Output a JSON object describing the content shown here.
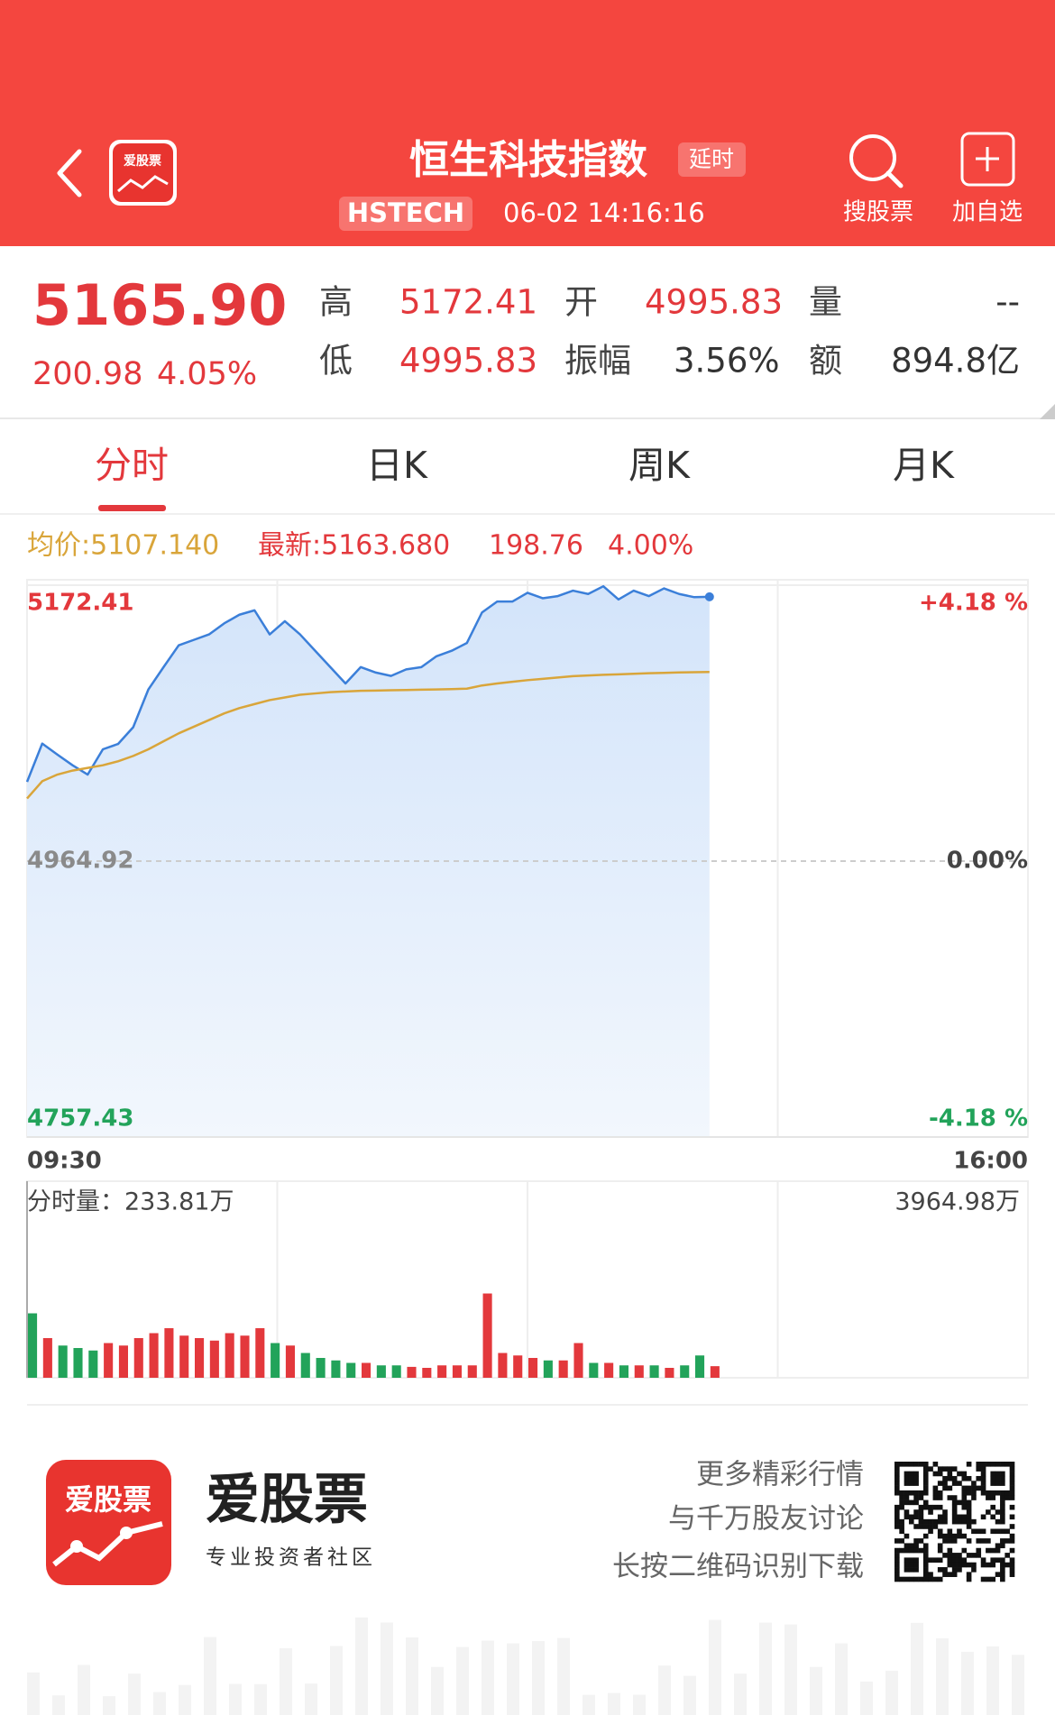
{
  "header": {
    "title": "恒生科技指数",
    "badge": "延时",
    "code": "HSTECH",
    "time": "06-02 14:16:16",
    "logo_text": "爱股票",
    "actions": [
      "搜股票",
      "加自选"
    ]
  },
  "quote": {
    "price": "5165.90",
    "change": "200.98",
    "change_pct": "4.05%",
    "stats": [
      {
        "label": "高",
        "value": "5172.41"
      },
      {
        "label": "开",
        "value": "4995.83"
      },
      {
        "label": "量",
        "value": "--"
      },
      {
        "label": "低",
        "value": "4995.83"
      },
      {
        "label": "振幅",
        "value": "3.56%"
      },
      {
        "label": "额",
        "value": "894.8亿"
      }
    ]
  },
  "tabs": [
    "分时",
    "日K",
    "周K",
    "月K"
  ],
  "info": [
    "均价:5107.140",
    "最新:5163.680",
    "198.76",
    "4.00%"
  ],
  "chart_data": [
    {
      "type": "line",
      "x_labels": [
        "09:30",
        "16:00"
      ],
      "ylim": [
        4757.43,
        5172.41
      ],
      "yticks": [
        5172.41,
        4964.92,
        4757.43
      ],
      "y2lim": [
        -4.18,
        4.18
      ],
      "y2ticks": [
        {
          "value": 4.18,
          "label": "+4.18 %"
        },
        {
          "value": 0,
          "label": "0.00%"
        },
        {
          "value": -4.18,
          "label": "-4.18 %"
        }
      ],
      "series": [
        {
          "color": "#3b7fd9",
          "values": [
            5024.5,
            5053.3,
            5045,
            5037,
            5030,
            5049,
            5053,
            5065.6,
            5094,
            5110.8,
            5127.2,
            5131.3,
            5135.4,
            5143.7,
            5150.2,
            5153.5,
            5135.4,
            5145.3,
            5135.4,
            5123.1,
            5110.8,
            5098.5,
            5110.8,
            5106.7,
            5104.2,
            5109.1,
            5110.8,
            5119,
            5123.1,
            5128.9,
            5151.9,
            5160.1,
            5160.1,
            5166.7,
            5162.6,
            5164.2,
            5168.3,
            5165.8,
            5171.6,
            5161.7,
            5168.3,
            5164.2,
            5170,
            5165.8,
            5163.4,
            5163.68
          ]
        },
        {
          "color": "#d9a53a",
          "values": [
            5012,
            5025,
            5030,
            5033,
            5035,
            5037,
            5040,
            5044,
            5049,
            5055,
            5061,
            5066,
            5071,
            5076,
            5080,
            5083,
            5086,
            5088,
            5090,
            5091,
            5092,
            5092.5,
            5093,
            5093.2,
            5093.4,
            5093.6,
            5093.8,
            5094,
            5094.3,
            5094.6,
            5097,
            5098.5,
            5099.8,
            5101,
            5102,
            5103,
            5104,
            5104.5,
            5105,
            5105.4,
            5105.8,
            5106.2,
            5106.5,
            5106.8,
            5107,
            5107.14
          ]
        }
      ]
    },
    {
      "type": "bar",
      "label": "分时量：233.81万",
      "ylim": [
        0,
        3964.98
      ],
      "yticks": [
        {
          "value": 3964.98,
          "label": "3964.98万"
        }
      ],
      "up_color": "#e3383c",
      "down_color": "#22a35a",
      "values": [
        1300,
        800,
        650,
        600,
        550,
        700,
        650,
        800,
        900,
        1000,
        850,
        800,
        750,
        900,
        850,
        1000,
        700,
        650,
        500,
        400,
        350,
        300,
        300,
        250,
        250,
        220,
        200,
        250,
        250,
        250,
        1700,
        500,
        450,
        400,
        350,
        350,
        700,
        300,
        300,
        250,
        250,
        250,
        200,
        250,
        450,
        233.81
      ]
    }
  ],
  "footer": {
    "logo_text": "爱股票",
    "brand": "爱股票",
    "slogan": "专业投资者社区",
    "lines": [
      "更多精彩行情",
      "与千万股友讨论",
      "长按二维码识别下载"
    ]
  }
}
